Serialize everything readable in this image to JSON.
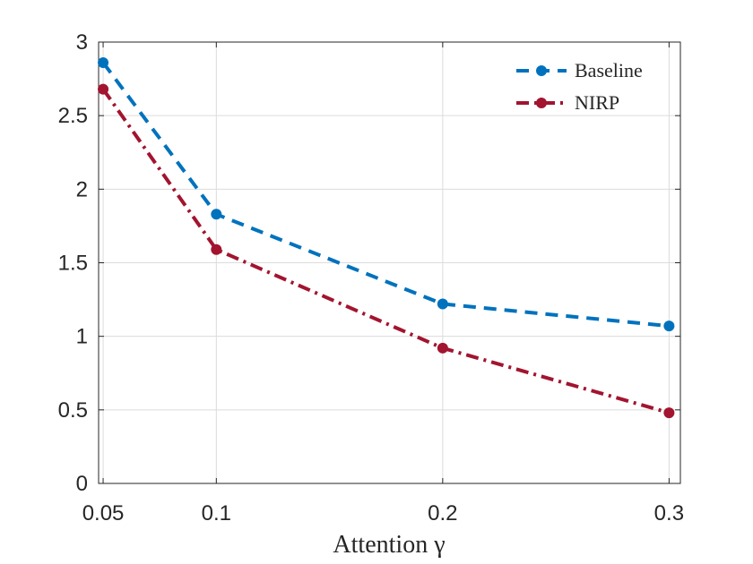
{
  "chart_data": {
    "type": "line",
    "title": "",
    "xlabel": "Attention γ",
    "ylabel": "",
    "x": [
      0.05,
      0.1,
      0.2,
      0.3
    ],
    "xlim": [
      0.048,
      0.305
    ],
    "ylim": [
      0,
      3
    ],
    "xticks": [
      "0.05",
      "0.1",
      "0.2",
      "0.3"
    ],
    "yticks": [
      "0",
      "0.5",
      "1",
      "1.5",
      "2",
      "2.5",
      "3"
    ],
    "grid": true,
    "legend_position": "top-right",
    "series": [
      {
        "name": "Baseline",
        "values": [
          2.86,
          1.83,
          1.22,
          1.07
        ],
        "color": "#0072BD",
        "line_style": "dashed",
        "marker": "circle"
      },
      {
        "name": "NIRP",
        "values": [
          2.68,
          1.59,
          0.92,
          0.48
        ],
        "color": "#A2142F",
        "line_style": "dash-dot",
        "marker": "circle"
      }
    ]
  }
}
